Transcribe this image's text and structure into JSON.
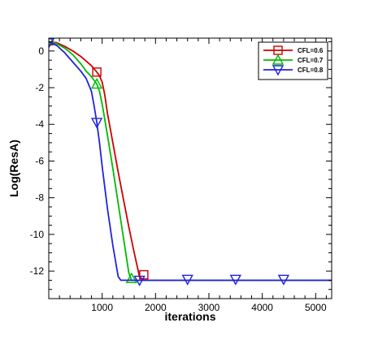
{
  "chart_data": {
    "type": "line",
    "xlabel": "iterations",
    "ylabel": "Log(ResA)",
    "xlim": [
      0,
      5300
    ],
    "ylim": [
      -13.5,
      0.7
    ],
    "xticks": [
      1000,
      2000,
      3000,
      4000,
      5000
    ],
    "xtick_labels": [
      "1000",
      "2000",
      "3000",
      "4000",
      "5000"
    ],
    "yticks": [
      0,
      -2,
      -4,
      -6,
      -8,
      -10,
      -12
    ],
    "ytick_labels": [
      "0",
      "-2",
      "-4",
      "-6",
      "-8",
      "-10",
      "-12"
    ],
    "grid": false,
    "legend_position": "top-right",
    "series": [
      {
        "name": "CFL=0.6",
        "color": "#cc0000",
        "marker": "square",
        "x": [
          0,
          150,
          300,
          450,
          600,
          700,
          800,
          900,
          950,
          1000,
          1050,
          1100,
          1200,
          1300,
          1400,
          1500,
          1600,
          1700,
          1780,
          1800,
          1850,
          5300
        ],
        "y": [
          0.5,
          0.45,
          0.25,
          0.0,
          -0.3,
          -0.55,
          -0.8,
          -1.15,
          -1.35,
          -1.7,
          -2.4,
          -3.4,
          -5.0,
          -6.6,
          -8.1,
          -9.6,
          -11.0,
          -12.3,
          -12.5,
          -12.5,
          -12.5,
          -12.5
        ],
        "marker_x": [
          0,
          900,
          1780
        ],
        "marker_y": [
          0.55,
          -1.15,
          -12.2
        ]
      },
      {
        "name": "CFL=0.7",
        "color": "#00bb00",
        "marker": "triangle-up",
        "x": [
          0,
          150,
          300,
          450,
          600,
          700,
          800,
          900,
          950,
          1000,
          1100,
          1200,
          1300,
          1400,
          1500,
          1550,
          1600,
          5300
        ],
        "y": [
          0.5,
          0.4,
          0.15,
          -0.2,
          -0.7,
          -1.1,
          -1.4,
          -1.8,
          -2.2,
          -2.9,
          -4.6,
          -6.4,
          -8.3,
          -10.2,
          -12.1,
          -12.5,
          -12.5,
          -12.5
        ],
        "marker_x": [
          0,
          900,
          1550
        ],
        "marker_y": [
          0.6,
          -1.8,
          -12.4
        ]
      },
      {
        "name": "CFL=0.8",
        "color": "#2222dd",
        "marker": "triangle-down",
        "x": [
          0,
          150,
          300,
          450,
          600,
          700,
          800,
          850,
          900,
          950,
          1000,
          1100,
          1200,
          1300,
          1350,
          1400,
          5300
        ],
        "y": [
          0.5,
          0.3,
          -0.1,
          -0.6,
          -1.1,
          -1.5,
          -2.2,
          -3.0,
          -3.9,
          -5.0,
          -6.3,
          -8.6,
          -10.6,
          -12.3,
          -12.5,
          -12.5,
          -12.5
        ],
        "marker_x": [
          0,
          900,
          1700,
          2600,
          3500,
          4400
        ],
        "marker_y": [
          0.45,
          -3.9,
          -12.5,
          -12.45,
          -12.45,
          -12.45
        ]
      }
    ]
  }
}
